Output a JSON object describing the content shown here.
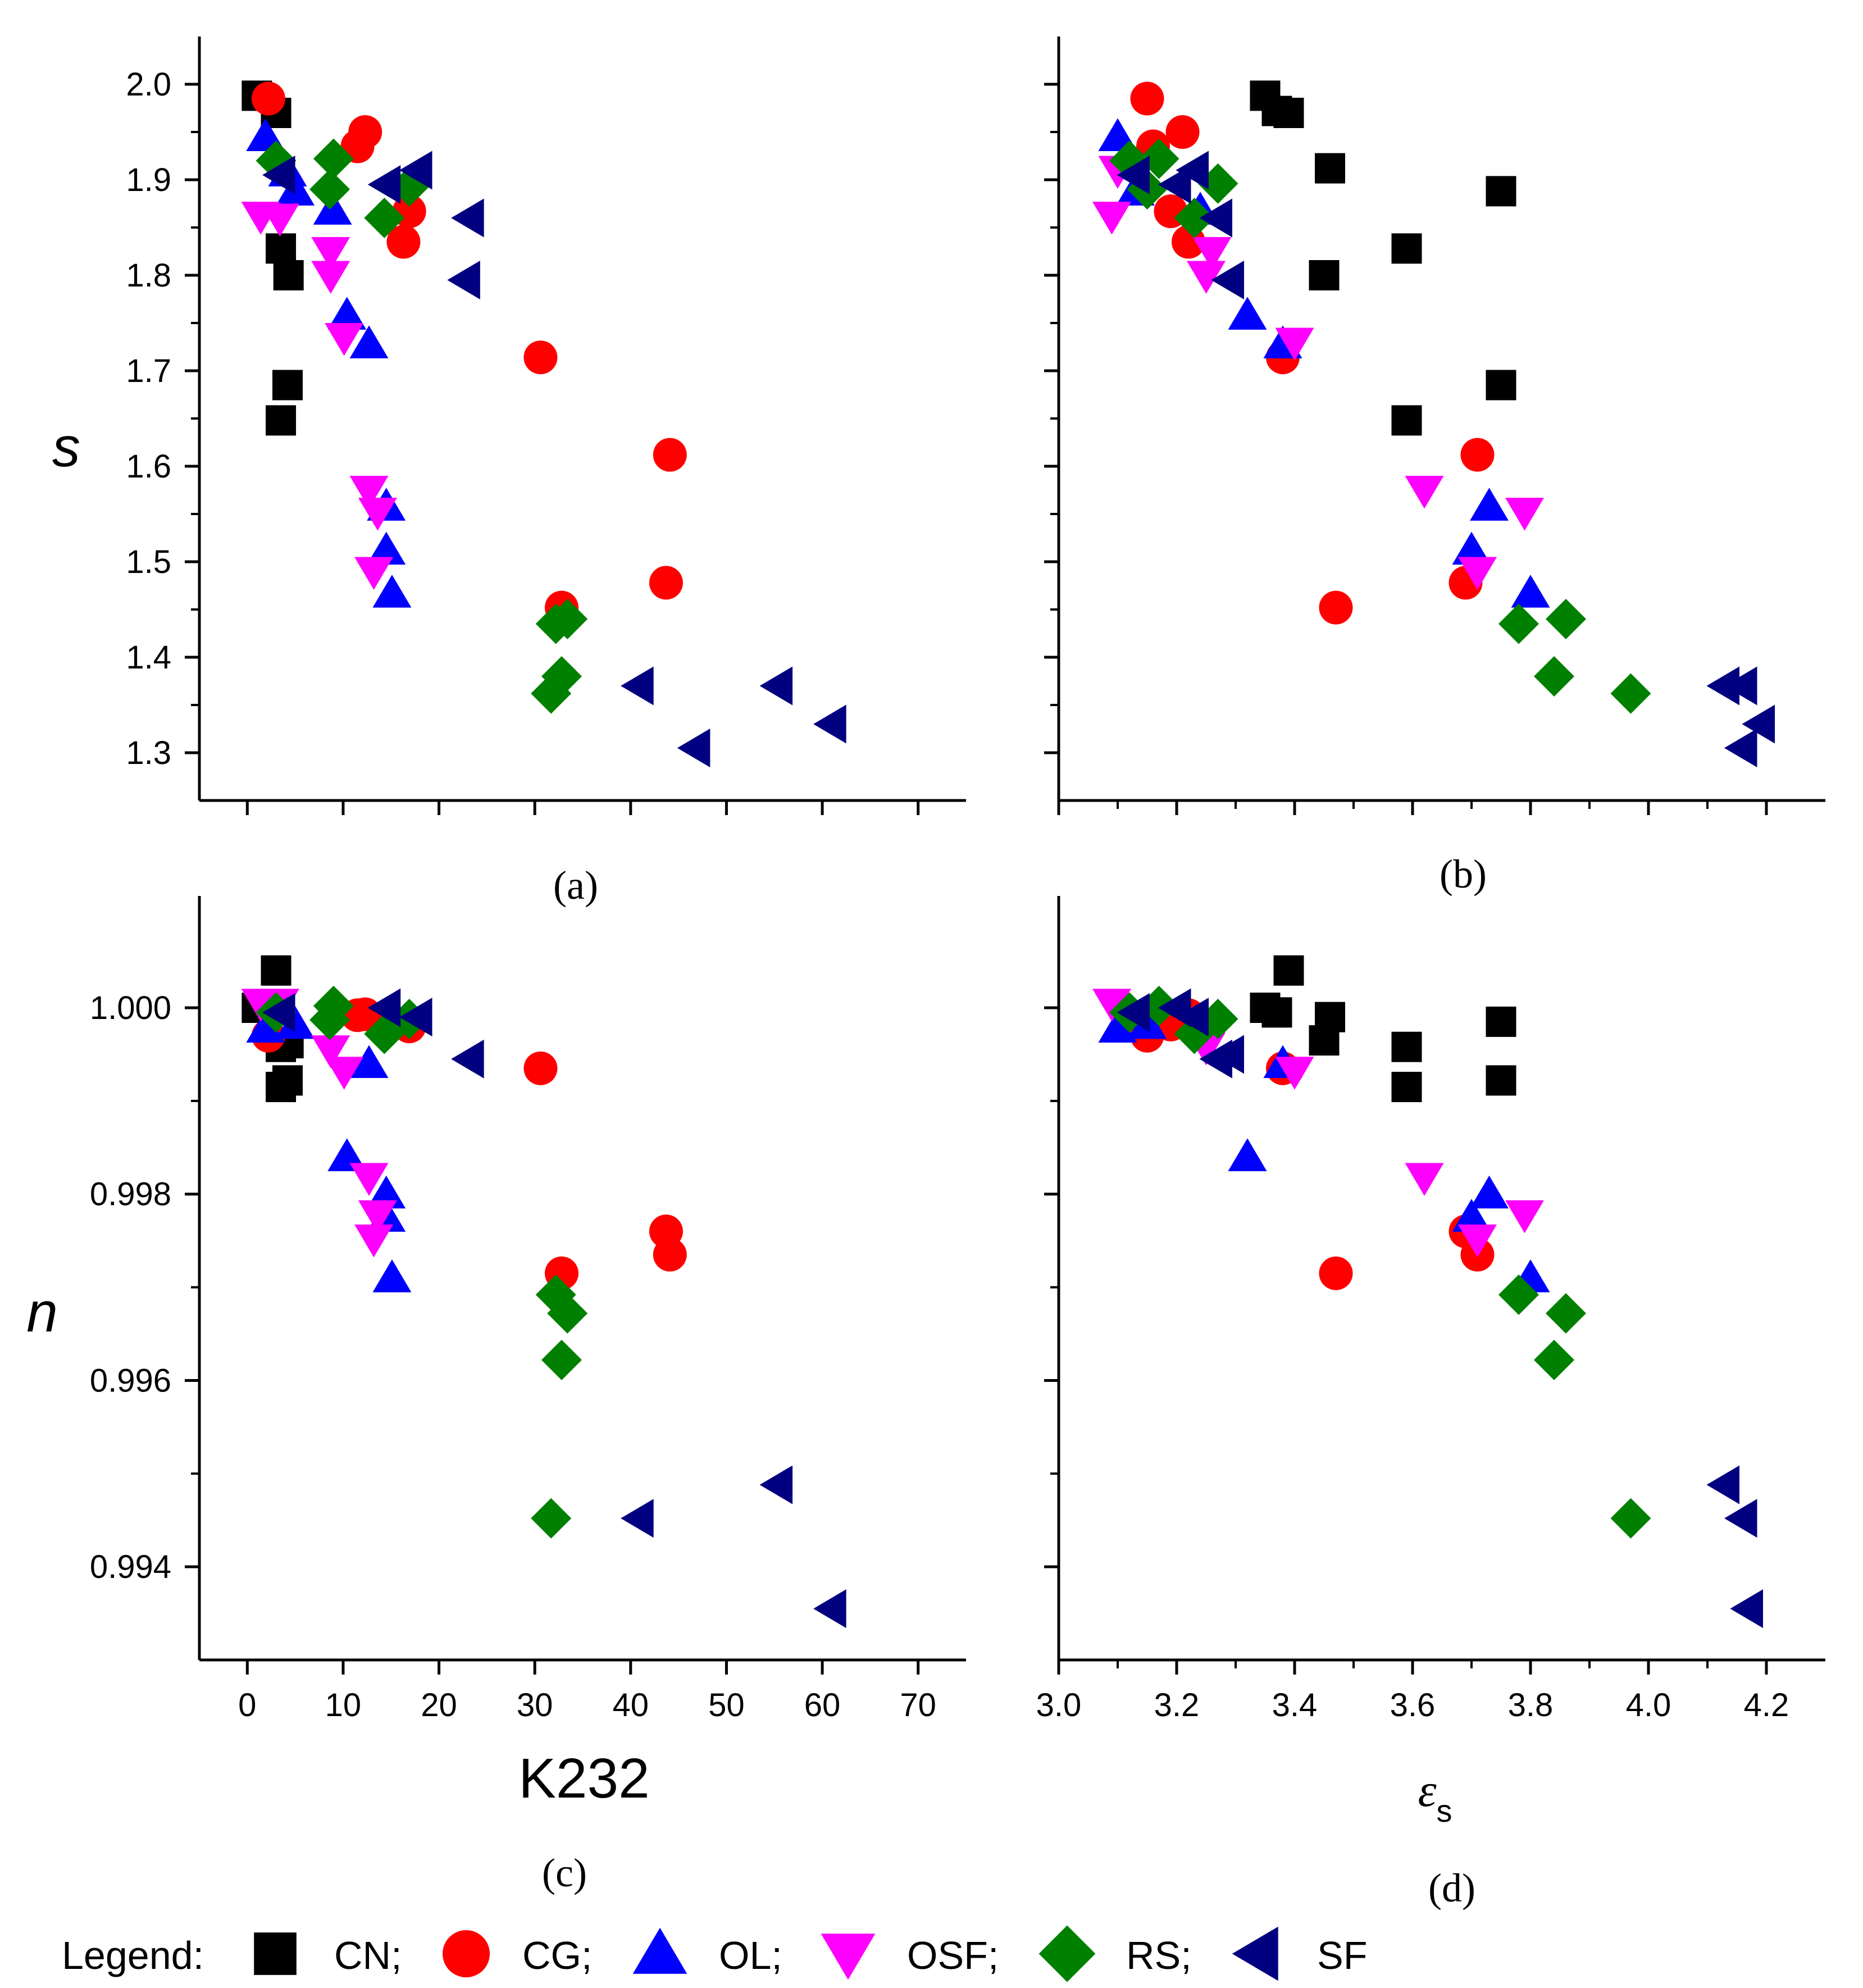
{
  "figure": {
    "legend_title": "Legend:",
    "x_label_left": "K232",
    "x_label_right_main": "ε",
    "x_label_right_sub": "s",
    "y_label_top": "s",
    "y_label_bottom": "n"
  },
  "chart_data": [
    {
      "panel": "a",
      "label": "(a)",
      "type": "scatter",
      "xlabel": "K232",
      "ylabel": "s",
      "xlim": [
        -5,
        75
      ],
      "ylim": [
        1.25,
        2.05
      ],
      "xticks": [
        0,
        10,
        20,
        30,
        40,
        50,
        60,
        70
      ],
      "yticks": [
        1.3,
        1.4,
        1.5,
        1.6,
        1.7,
        1.8,
        1.9,
        2.0
      ],
      "ytick_labels": [
        "1.3",
        "1.4",
        "1.5",
        "1.6",
        "1.7",
        "1.8",
        "1.9",
        "2.0"
      ],
      "show_xtick_labels": false,
      "show_ytick_labels": true,
      "series": [
        {
          "name": "CN",
          "points": [
            [
              1.0,
              1.988
            ],
            [
              3.0,
              1.97
            ],
            [
              3.5,
              1.828
            ],
            [
              4.3,
              1.8
            ],
            [
              3.5,
              1.648
            ],
            [
              4.2,
              1.685
            ]
          ]
        },
        {
          "name": "CG",
          "points": [
            [
              2.2,
              1.985
            ],
            [
              11.5,
              1.935
            ],
            [
              12.3,
              1.95
            ],
            [
              16.9,
              1.867
            ],
            [
              16.3,
              1.835
            ],
            [
              30.6,
              1.714
            ],
            [
              44.1,
              1.612
            ],
            [
              43.7,
              1.478
            ],
            [
              32.8,
              1.452
            ]
          ]
        },
        {
          "name": "OL",
          "points": [
            [
              1.9,
              1.945
            ],
            [
              4.2,
              1.908
            ],
            [
              5.0,
              1.888
            ],
            [
              8.9,
              1.868
            ],
            [
              10.4,
              1.758
            ],
            [
              12.7,
              1.728
            ],
            [
              14.5,
              1.558
            ],
            [
              14.5,
              1.512
            ],
            [
              15.1,
              1.467
            ]
          ]
        },
        {
          "name": "OSF",
          "points": [
            [
              1.4,
              1.862
            ],
            [
              3.4,
              1.86
            ],
            [
              8.7,
              1.825
            ],
            [
              8.7,
              1.8
            ],
            [
              10.1,
              1.735
            ],
            [
              12.7,
              1.575
            ],
            [
              13.6,
              1.552
            ],
            [
              13.2,
              1.49
            ]
          ]
        },
        {
          "name": "RS",
          "points": [
            [
              3.0,
              1.92
            ],
            [
              9.0,
              1.922
            ],
            [
              8.6,
              1.89
            ],
            [
              14.3,
              1.86
            ],
            [
              16.9,
              1.893
            ],
            [
              32.2,
              1.435
            ],
            [
              33.4,
              1.44
            ],
            [
              32.8,
              1.38
            ],
            [
              31.7,
              1.362
            ]
          ]
        },
        {
          "name": "SF",
          "points": [
            [
              3.5,
              1.905
            ],
            [
              14.5,
              1.895
            ],
            [
              17.8,
              1.91
            ],
            [
              23.2,
              1.86
            ],
            [
              22.8,
              1.795
            ],
            [
              40.9,
              1.37
            ],
            [
              46.8,
              1.305
            ],
            [
              55.4,
              1.37
            ],
            [
              61.0,
              1.33
            ]
          ]
        }
      ]
    },
    {
      "panel": "b",
      "label": "(b)",
      "type": "scatter",
      "xlabel": "εs",
      "ylabel": "s",
      "xlim": [
        3.0,
        4.3
      ],
      "ylim": [
        1.25,
        2.05
      ],
      "xticks": [
        3.0,
        3.2,
        3.4,
        3.6,
        3.8,
        4.0,
        4.2
      ],
      "yticks": [
        1.3,
        1.4,
        1.5,
        1.6,
        1.7,
        1.8,
        1.9,
        2.0
      ],
      "minor_xticks": true,
      "show_xtick_labels": false,
      "show_ytick_labels": false,
      "series": [
        {
          "name": "CN",
          "points": [
            [
              3.35,
              1.988
            ],
            [
              3.37,
              1.972
            ],
            [
              3.39,
              1.97
            ],
            [
              3.46,
              1.912
            ],
            [
              3.45,
              1.8
            ],
            [
              3.59,
              1.828
            ],
            [
              3.59,
              1.648
            ],
            [
              3.75,
              1.888
            ],
            [
              3.75,
              1.685
            ]
          ]
        },
        {
          "name": "CG",
          "points": [
            [
              3.15,
              1.985
            ],
            [
              3.16,
              1.935
            ],
            [
              3.21,
              1.95
            ],
            [
              3.19,
              1.867
            ],
            [
              3.22,
              1.835
            ],
            [
              3.38,
              1.714
            ],
            [
              3.71,
              1.612
            ],
            [
              3.69,
              1.478
            ],
            [
              3.47,
              1.452
            ]
          ]
        },
        {
          "name": "OL",
          "points": [
            [
              3.1,
              1.945
            ],
            [
              3.13,
              1.888
            ],
            [
              3.24,
              1.868
            ],
            [
              3.32,
              1.758
            ],
            [
              3.38,
              1.728
            ],
            [
              3.73,
              1.558
            ],
            [
              3.7,
              1.512
            ],
            [
              3.8,
              1.467
            ]
          ]
        },
        {
          "name": "OSF",
          "points": [
            [
              3.09,
              1.862
            ],
            [
              3.1,
              1.91
            ],
            [
              3.26,
              1.825
            ],
            [
              3.25,
              1.8
            ],
            [
              3.4,
              1.73
            ],
            [
              3.62,
              1.575
            ],
            [
              3.79,
              1.552
            ],
            [
              3.71,
              1.49
            ]
          ]
        },
        {
          "name": "RS",
          "points": [
            [
              3.12,
              1.92
            ],
            [
              3.17,
              1.922
            ],
            [
              3.15,
              1.89
            ],
            [
              3.23,
              1.86
            ],
            [
              3.27,
              1.896
            ],
            [
              3.78,
              1.435
            ],
            [
              3.86,
              1.44
            ],
            [
              3.84,
              1.38
            ],
            [
              3.97,
              1.362
            ]
          ]
        },
        {
          "name": "SF",
          "points": [
            [
              3.13,
              1.905
            ],
            [
              3.2,
              1.895
            ],
            [
              3.23,
              1.91
            ],
            [
              3.27,
              1.86
            ],
            [
              3.29,
              1.795
            ],
            [
              4.13,
              1.37
            ],
            [
              4.16,
              1.37
            ],
            [
              4.16,
              1.305
            ],
            [
              4.19,
              1.33
            ]
          ]
        }
      ]
    },
    {
      "panel": "c",
      "label": "(c)",
      "type": "scatter",
      "xlabel": "K232",
      "ylabel": "n",
      "xlim": [
        -5,
        75
      ],
      "ylim": [
        0.993,
        1.0012
      ],
      "xticks": [
        0,
        10,
        20,
        30,
        40,
        50,
        60,
        70
      ],
      "xtick_labels": [
        "0",
        "10",
        "20",
        "30",
        "40",
        "50",
        "60",
        "70"
      ],
      "yticks": [
        0.994,
        0.996,
        0.998,
        1.0
      ],
      "ytick_labels": [
        "0.994",
        "0.996",
        "0.998",
        "1.000"
      ],
      "show_xtick_labels": true,
      "show_ytick_labels": true,
      "series": [
        {
          "name": "CN",
          "points": [
            [
              1.0,
              1.0
            ],
            [
              3.0,
              1.0004
            ],
            [
              3.5,
              0.99958
            ],
            [
              4.3,
              0.99962
            ],
            [
              3.5,
              0.99915
            ],
            [
              4.2,
              0.99922
            ]
          ]
        },
        {
          "name": "CG",
          "points": [
            [
              2.2,
              0.9997
            ],
            [
              11.5,
              0.99992
            ],
            [
              12.3,
              0.99993
            ],
            [
              16.9,
              0.9998
            ],
            [
              30.6,
              0.99935
            ],
            [
              44.1,
              0.99735
            ],
            [
              43.7,
              0.9976
            ],
            [
              32.8,
              0.99715
            ]
          ]
        },
        {
          "name": "OL",
          "points": [
            [
              1.9,
              0.99978
            ],
            [
              5.0,
              0.99982
            ],
            [
              12.7,
              0.9994
            ],
            [
              10.4,
              0.9984
            ],
            [
              14.5,
              0.998
            ],
            [
              14.5,
              0.99775
            ],
            [
              15.1,
              0.9971
            ]
          ]
        },
        {
          "name": "OSF",
          "points": [
            [
              1.4,
              1.00005
            ],
            [
              3.4,
              1.00005
            ],
            [
              8.7,
              0.99955
            ],
            [
              10.1,
              0.99932
            ],
            [
              12.7,
              0.99818
            ],
            [
              13.6,
              0.99778
            ],
            [
              13.2,
              0.99752
            ]
          ]
        },
        {
          "name": "RS",
          "points": [
            [
              3.0,
              0.99995
            ],
            [
              9.0,
              1.00002
            ],
            [
              8.6,
              0.99987
            ],
            [
              14.3,
              0.99972
            ],
            [
              16.9,
              0.99988
            ],
            [
              32.2,
              0.99692
            ],
            [
              33.4,
              0.99672
            ],
            [
              32.8,
              0.99622
            ],
            [
              31.7,
              0.99452
            ]
          ]
        },
        {
          "name": "SF",
          "points": [
            [
              3.5,
              0.99995
            ],
            [
              14.5,
              1.0
            ],
            [
              17.8,
              0.9999
            ],
            [
              23.2,
              0.99945
            ],
            [
              40.9,
              0.99452
            ],
            [
              55.4,
              0.99488
            ],
            [
              61.0,
              0.99355
            ]
          ]
        }
      ]
    },
    {
      "panel": "d",
      "label": "(d)",
      "type": "scatter",
      "xlabel": "εs",
      "ylabel": "n",
      "xlim": [
        3.0,
        4.3
      ],
      "ylim": [
        0.993,
        1.0012
      ],
      "xticks": [
        3.0,
        3.2,
        3.4,
        3.6,
        3.8,
        4.0,
        4.2
      ],
      "xtick_labels": [
        "3.0",
        "3.2",
        "3.4",
        "3.6",
        "3.8",
        "4.0",
        "4.2"
      ],
      "yticks": [
        0.994,
        0.996,
        0.998,
        1.0
      ],
      "minor_xticks": true,
      "show_xtick_labels": true,
      "show_ytick_labels": false,
      "series": [
        {
          "name": "CN",
          "points": [
            [
              3.35,
              1.0
            ],
            [
              3.37,
              0.99995
            ],
            [
              3.39,
              1.0004
            ],
            [
              3.46,
              0.9999
            ],
            [
              3.45,
              0.99965
            ],
            [
              3.59,
              0.99958
            ],
            [
              3.59,
              0.99915
            ],
            [
              3.75,
              0.99985
            ],
            [
              3.75,
              0.99922
            ]
          ]
        },
        {
          "name": "CG",
          "points": [
            [
              3.15,
              0.9997
            ],
            [
              3.19,
              0.99982
            ],
            [
              3.22,
              0.99992
            ],
            [
              3.38,
              0.99935
            ],
            [
              3.69,
              0.9976
            ],
            [
              3.71,
              0.99735
            ],
            [
              3.47,
              0.99715
            ]
          ]
        },
        {
          "name": "OL",
          "points": [
            [
              3.1,
              0.99978
            ],
            [
              3.15,
              0.99982
            ],
            [
              3.32,
              0.9984
            ],
            [
              3.38,
              0.9994
            ],
            [
              3.73,
              0.998
            ],
            [
              3.7,
              0.99775
            ],
            [
              3.8,
              0.9971
            ]
          ]
        },
        {
          "name": "OSF",
          "points": [
            [
              3.09,
              1.00005
            ],
            [
              3.25,
              0.99958
            ],
            [
              3.4,
              0.99932
            ],
            [
              3.62,
              0.99818
            ],
            [
              3.79,
              0.99778
            ],
            [
              3.71,
              0.99752
            ]
          ]
        },
        {
          "name": "RS",
          "points": [
            [
              3.12,
              0.99995
            ],
            [
              3.17,
              1.00002
            ],
            [
              3.23,
              0.99972
            ],
            [
              3.27,
              0.99988
            ],
            [
              3.78,
              0.99692
            ],
            [
              3.86,
              0.99672
            ],
            [
              3.84,
              0.99622
            ],
            [
              3.97,
              0.99452
            ]
          ]
        },
        {
          "name": "SF",
          "points": [
            [
              3.13,
              0.99995
            ],
            [
              3.2,
              1.0
            ],
            [
              3.23,
              0.9999
            ],
            [
              3.27,
              0.99945
            ],
            [
              3.29,
              0.9995
            ],
            [
              4.13,
              0.99488
            ],
            [
              4.16,
              0.99452
            ],
            [
              4.17,
              0.99355
            ]
          ]
        }
      ]
    }
  ],
  "legend": {
    "entries": [
      {
        "name": "CN",
        "label": "CN;"
      },
      {
        "name": "CG",
        "label": "CG;"
      },
      {
        "name": "OL",
        "label": "OL;"
      },
      {
        "name": "OSF",
        "label": "OSF;"
      },
      {
        "name": "RS",
        "label": "RS;"
      },
      {
        "name": "SF",
        "label": "SF"
      }
    ]
  },
  "colors": {
    "CN": "#000000",
    "CG": "#ff0000",
    "OL": "#0000ff",
    "OSF": "#ff00ff",
    "RS": "#008000",
    "SF": "#000080"
  },
  "markers": {
    "CN": "square",
    "CG": "circle",
    "OL": "triangle-up",
    "OSF": "triangle-down",
    "RS": "diamond",
    "SF": "triangle-left"
  }
}
